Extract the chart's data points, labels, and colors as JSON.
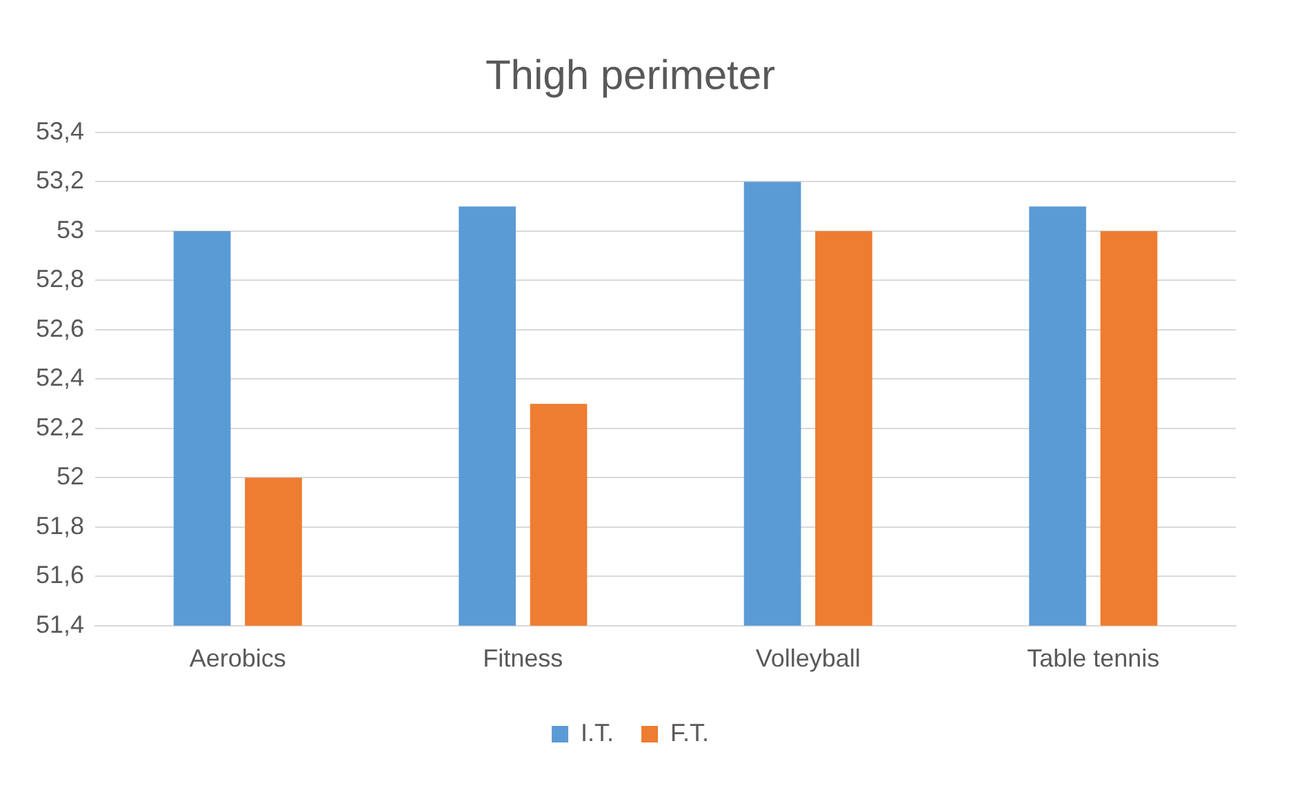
{
  "chart_data": {
    "type": "bar",
    "title": "Thigh perimeter",
    "categories": [
      "Aerobics",
      "Fitness",
      "Volleyball",
      "Table tennis"
    ],
    "series": [
      {
        "name": "I.T.",
        "color": "#5b9bd5",
        "values": [
          53,
          53.1,
          53.2,
          53.1
        ]
      },
      {
        "name": "F.T.",
        "color": "#ed7d31",
        "values": [
          52,
          52.3,
          53,
          53
        ]
      }
    ],
    "ylim": [
      51.4,
      53.4
    ],
    "yticks": [
      {
        "value": 51.4,
        "label": "51,4"
      },
      {
        "value": 51.6,
        "label": "51,6"
      },
      {
        "value": 51.8,
        "label": "51,8"
      },
      52,
      {
        "value": 52.2,
        "label": "52,2"
      },
      {
        "value": 52.4,
        "label": "52,4"
      },
      {
        "value": 52.6,
        "label": "52,6"
      },
      {
        "value": 52.8,
        "label": "52,8"
      },
      53,
      {
        "value": 53.2,
        "label": "53,2"
      },
      {
        "value": 53.4,
        "label": "53,4"
      }
    ],
    "grid": "y",
    "legend": "bottom"
  }
}
